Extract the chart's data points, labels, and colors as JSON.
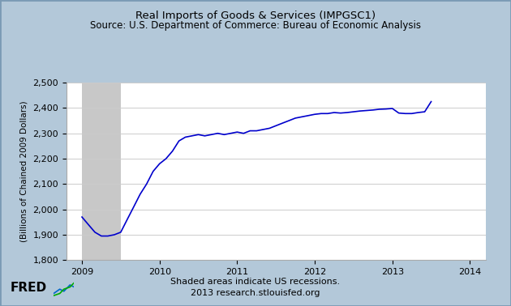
{
  "title_line1": "Real Imports of Goods & Services (IMPGSC1)",
  "title_line2": "Source: U.S. Department of Commerce: Bureau of Economic Analysis",
  "ylabel": "(Billions of Chained 2009 Dollars)",
  "footer_line1": "Shaded areas indicate US recessions.",
  "footer_line2": "2013 research.stlouisfed.org",
  "background_color": "#b3c8d9",
  "plot_bg_color": "#ffffff",
  "recession_color": "#c8c8c8",
  "line_color": "#0000cc",
  "recession_start": 2009.0,
  "recession_end": 2009.5,
  "xlim": [
    2008.8,
    2014.2
  ],
  "ylim": [
    1800,
    2500
  ],
  "yticks": [
    1800,
    1900,
    2000,
    2100,
    2200,
    2300,
    2400,
    2500
  ],
  "xticks": [
    2009,
    2010,
    2011,
    2012,
    2013,
    2014
  ],
  "data_x": [
    2009.0,
    2009.083,
    2009.167,
    2009.25,
    2009.333,
    2009.417,
    2009.5,
    2009.583,
    2009.667,
    2009.75,
    2009.833,
    2009.917,
    2010.0,
    2010.083,
    2010.167,
    2010.25,
    2010.333,
    2010.417,
    2010.5,
    2010.583,
    2010.667,
    2010.75,
    2010.833,
    2010.917,
    2011.0,
    2011.083,
    2011.167,
    2011.25,
    2011.333,
    2011.417,
    2011.5,
    2011.583,
    2011.667,
    2011.75,
    2011.833,
    2011.917,
    2012.0,
    2012.083,
    2012.167,
    2012.25,
    2012.333,
    2012.417,
    2012.5,
    2012.583,
    2012.667,
    2012.75,
    2012.833,
    2012.917,
    2013.0,
    2013.083,
    2013.167,
    2013.25,
    2013.333,
    2013.417,
    2013.5
  ],
  "data_y": [
    1970,
    1940,
    1910,
    1895,
    1895,
    1900,
    1910,
    1960,
    2010,
    2060,
    2100,
    2150,
    2180,
    2200,
    2230,
    2270,
    2285,
    2290,
    2295,
    2290,
    2295,
    2300,
    2295,
    2300,
    2305,
    2300,
    2310,
    2310,
    2315,
    2320,
    2330,
    2340,
    2350,
    2360,
    2365,
    2370,
    2375,
    2378,
    2378,
    2382,
    2380,
    2382,
    2385,
    2388,
    2390,
    2392,
    2395,
    2396,
    2398,
    2380,
    2378,
    2378,
    2382,
    2385,
    2425
  ]
}
